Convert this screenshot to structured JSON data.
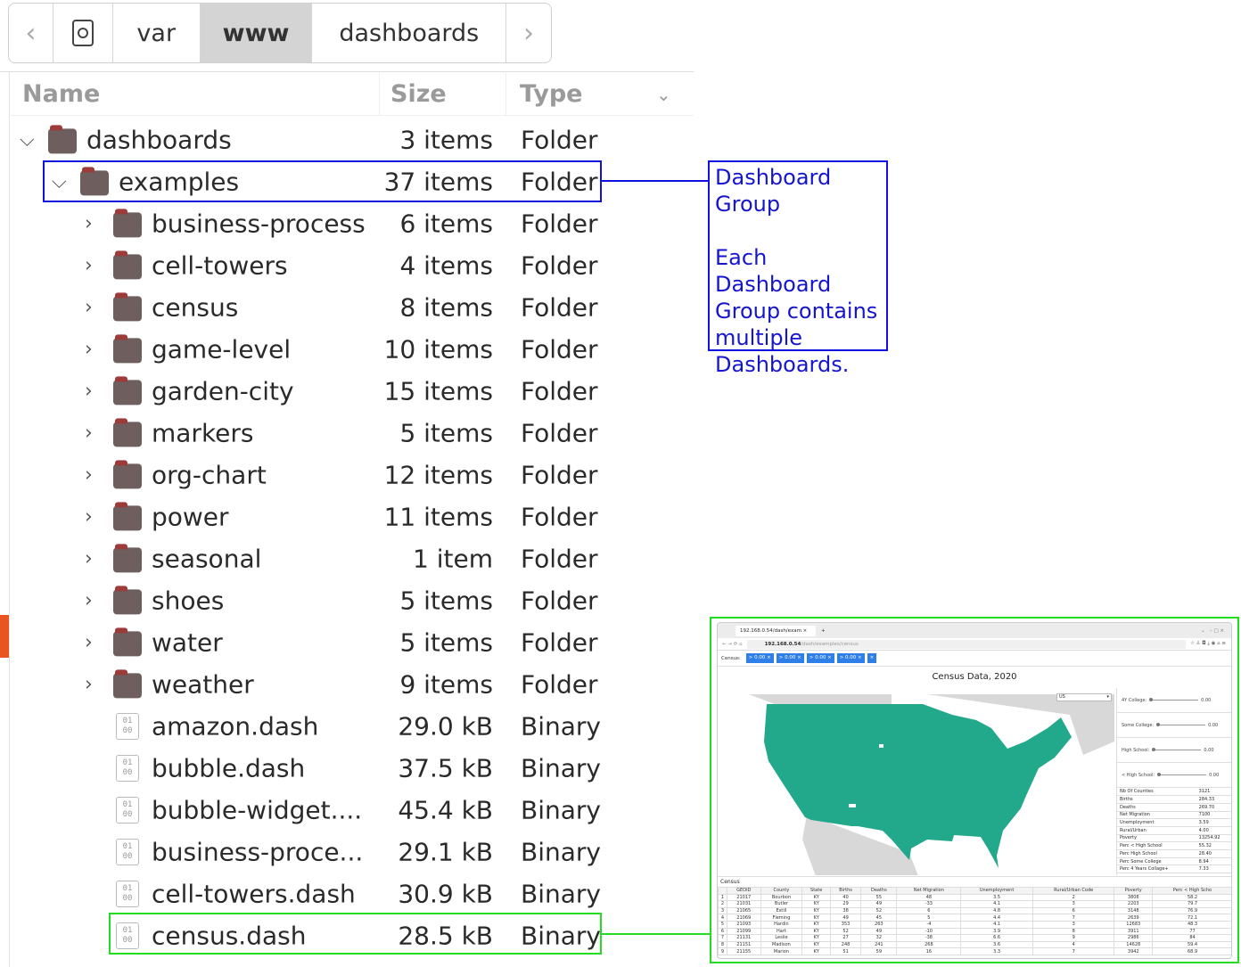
{
  "breadcrumb": {
    "back": "‹",
    "forward": "›",
    "items": [
      "var",
      "www",
      "dashboards"
    ],
    "active": "www"
  },
  "columns": {
    "name": "Name",
    "size": "Size",
    "type": "Type",
    "sort_icon": "chevron-down-icon"
  },
  "rows": [
    {
      "name": "dashboards",
      "size": "3 items",
      "type": "Folder",
      "kind": "folder",
      "level": 0,
      "expanded": true
    },
    {
      "name": "examples",
      "size": "37 items",
      "type": "Folder",
      "kind": "folder",
      "level": 1,
      "expanded": true
    },
    {
      "name": "business-process",
      "size": "6 items",
      "type": "Folder",
      "kind": "folder",
      "level": 2
    },
    {
      "name": "cell-towers",
      "size": "4 items",
      "type": "Folder",
      "kind": "folder",
      "level": 2
    },
    {
      "name": "census",
      "size": "8 items",
      "type": "Folder",
      "kind": "folder",
      "level": 2
    },
    {
      "name": "game-level",
      "size": "10 items",
      "type": "Folder",
      "kind": "folder",
      "level": 2
    },
    {
      "name": "garden-city",
      "size": "15 items",
      "type": "Folder",
      "kind": "folder",
      "level": 2
    },
    {
      "name": "markers",
      "size": "5 items",
      "type": "Folder",
      "kind": "folder",
      "level": 2
    },
    {
      "name": "org-chart",
      "size": "12 items",
      "type": "Folder",
      "kind": "folder",
      "level": 2
    },
    {
      "name": "power",
      "size": "11 items",
      "type": "Folder",
      "kind": "folder",
      "level": 2
    },
    {
      "name": "seasonal",
      "size": "1 item",
      "type": "Folder",
      "kind": "folder",
      "level": 2
    },
    {
      "name": "shoes",
      "size": "5 items",
      "type": "Folder",
      "kind": "folder",
      "level": 2
    },
    {
      "name": "water",
      "size": "5 items",
      "type": "Folder",
      "kind": "folder",
      "level": 2
    },
    {
      "name": "weather",
      "size": "9 items",
      "type": "Folder",
      "kind": "folder",
      "level": 2
    },
    {
      "name": "amazon.dash",
      "size": "29.0 kB",
      "type": "Binary",
      "kind": "file",
      "level": 2
    },
    {
      "name": "bubble.dash",
      "size": "37.5 kB",
      "type": "Binary",
      "kind": "file",
      "level": 2
    },
    {
      "name": "bubble-widget....",
      "size": "45.4 kB",
      "type": "Binary",
      "kind": "file",
      "level": 2
    },
    {
      "name": "business-proce...",
      "size": "29.1 kB",
      "type": "Binary",
      "kind": "file",
      "level": 2
    },
    {
      "name": "cell-towers.dash",
      "size": "30.9 kB",
      "type": "Binary",
      "kind": "file",
      "level": 2
    },
    {
      "name": "census.dash",
      "size": "28.5 kB",
      "type": "Binary",
      "kind": "file",
      "level": 2
    }
  ],
  "annotation": {
    "line1": "Dashboard",
    "line2": "Group",
    "line3": "Each Dashboard",
    "line4": "Group contains",
    "line5": "multiple",
    "line6": "Dashboards.",
    "color": "#1515d0"
  },
  "highlight_color": "#22dd22",
  "preview": {
    "tab_title": "192.168.0.54/dash/exam",
    "url_host": "192.168.0.54",
    "url_path": "/dash/examples/census",
    "filter_label": "Census:",
    "chips": [
      "> 0.00",
      "> 0.00",
      "> 0.00",
      "> 0.00",
      ""
    ],
    "title": "Census Data, 2020",
    "region_select": "US",
    "sliders": [
      {
        "label": "4Y College:",
        "value": "0.00"
      },
      {
        "label": "Some College:",
        "value": "0.00"
      },
      {
        "label": "High School:",
        "value": "0.00"
      },
      {
        "label": "< High School:",
        "value": "0.00"
      }
    ],
    "stats": [
      [
        "Nb Of Counties",
        "3121"
      ],
      [
        "Births",
        "284.33"
      ],
      [
        "Deaths",
        "269.70"
      ],
      [
        "Net Migration",
        "7100"
      ],
      [
        "Unemployment",
        "3.59"
      ],
      [
        "Rural/Urban",
        "4.00"
      ],
      [
        "Poverty",
        "13254.92"
      ],
      [
        "Perc < High School",
        "55.32"
      ],
      [
        "Perc High School",
        "28.40"
      ],
      [
        "Perc Some College",
        "8.94"
      ],
      [
        "Perc 4 Years Collage+",
        "7.33"
      ]
    ],
    "table_title": "Census",
    "table_headers": [
      "",
      "GEOID",
      "County",
      "State",
      "Births",
      "Deaths",
      "Net Migration",
      "Unemployment",
      "Rural/Urban Code",
      "Poverty",
      "Perc < High Scho"
    ],
    "table_rows": [
      [
        "1",
        "21017",
        "Bourbon",
        "KY",
        "40",
        "55",
        "48",
        "3.5",
        "2",
        "3808",
        "58.2"
      ],
      [
        "2",
        "21031",
        "Butler",
        "KY",
        "29",
        "49",
        "-33",
        "4.1",
        "3",
        "2203",
        "79.7"
      ],
      [
        "3",
        "21065",
        "Estill",
        "KY",
        "38",
        "52",
        "6",
        "4.8",
        "6",
        "3148",
        "76.9"
      ],
      [
        "4",
        "21069",
        "Fleming",
        "KY",
        "49",
        "45",
        "5",
        "4.4",
        "7",
        "2639",
        "72.1"
      ],
      [
        "5",
        "21093",
        "Hardin",
        "KY",
        "353",
        "263",
        "-4",
        "4.1",
        "3",
        "12683",
        "48.3"
      ],
      [
        "6",
        "21099",
        "Hart",
        "KY",
        "52",
        "49",
        "-10",
        "3.9",
        "8",
        "3911",
        "77"
      ],
      [
        "7",
        "21131",
        "Leslie",
        "KY",
        "27",
        "32",
        "-38",
        "6.6",
        "9",
        "2986",
        "84"
      ],
      [
        "8",
        "21151",
        "Madison",
        "KY",
        "248",
        "241",
        "268",
        "3.6",
        "4",
        "14628",
        "59.4"
      ],
      [
        "9",
        "21155",
        "Marion",
        "KY",
        "51",
        "59",
        "16",
        "3.3",
        "7",
        "3942",
        "68.9"
      ]
    ],
    "map_color": "#22a88a"
  }
}
